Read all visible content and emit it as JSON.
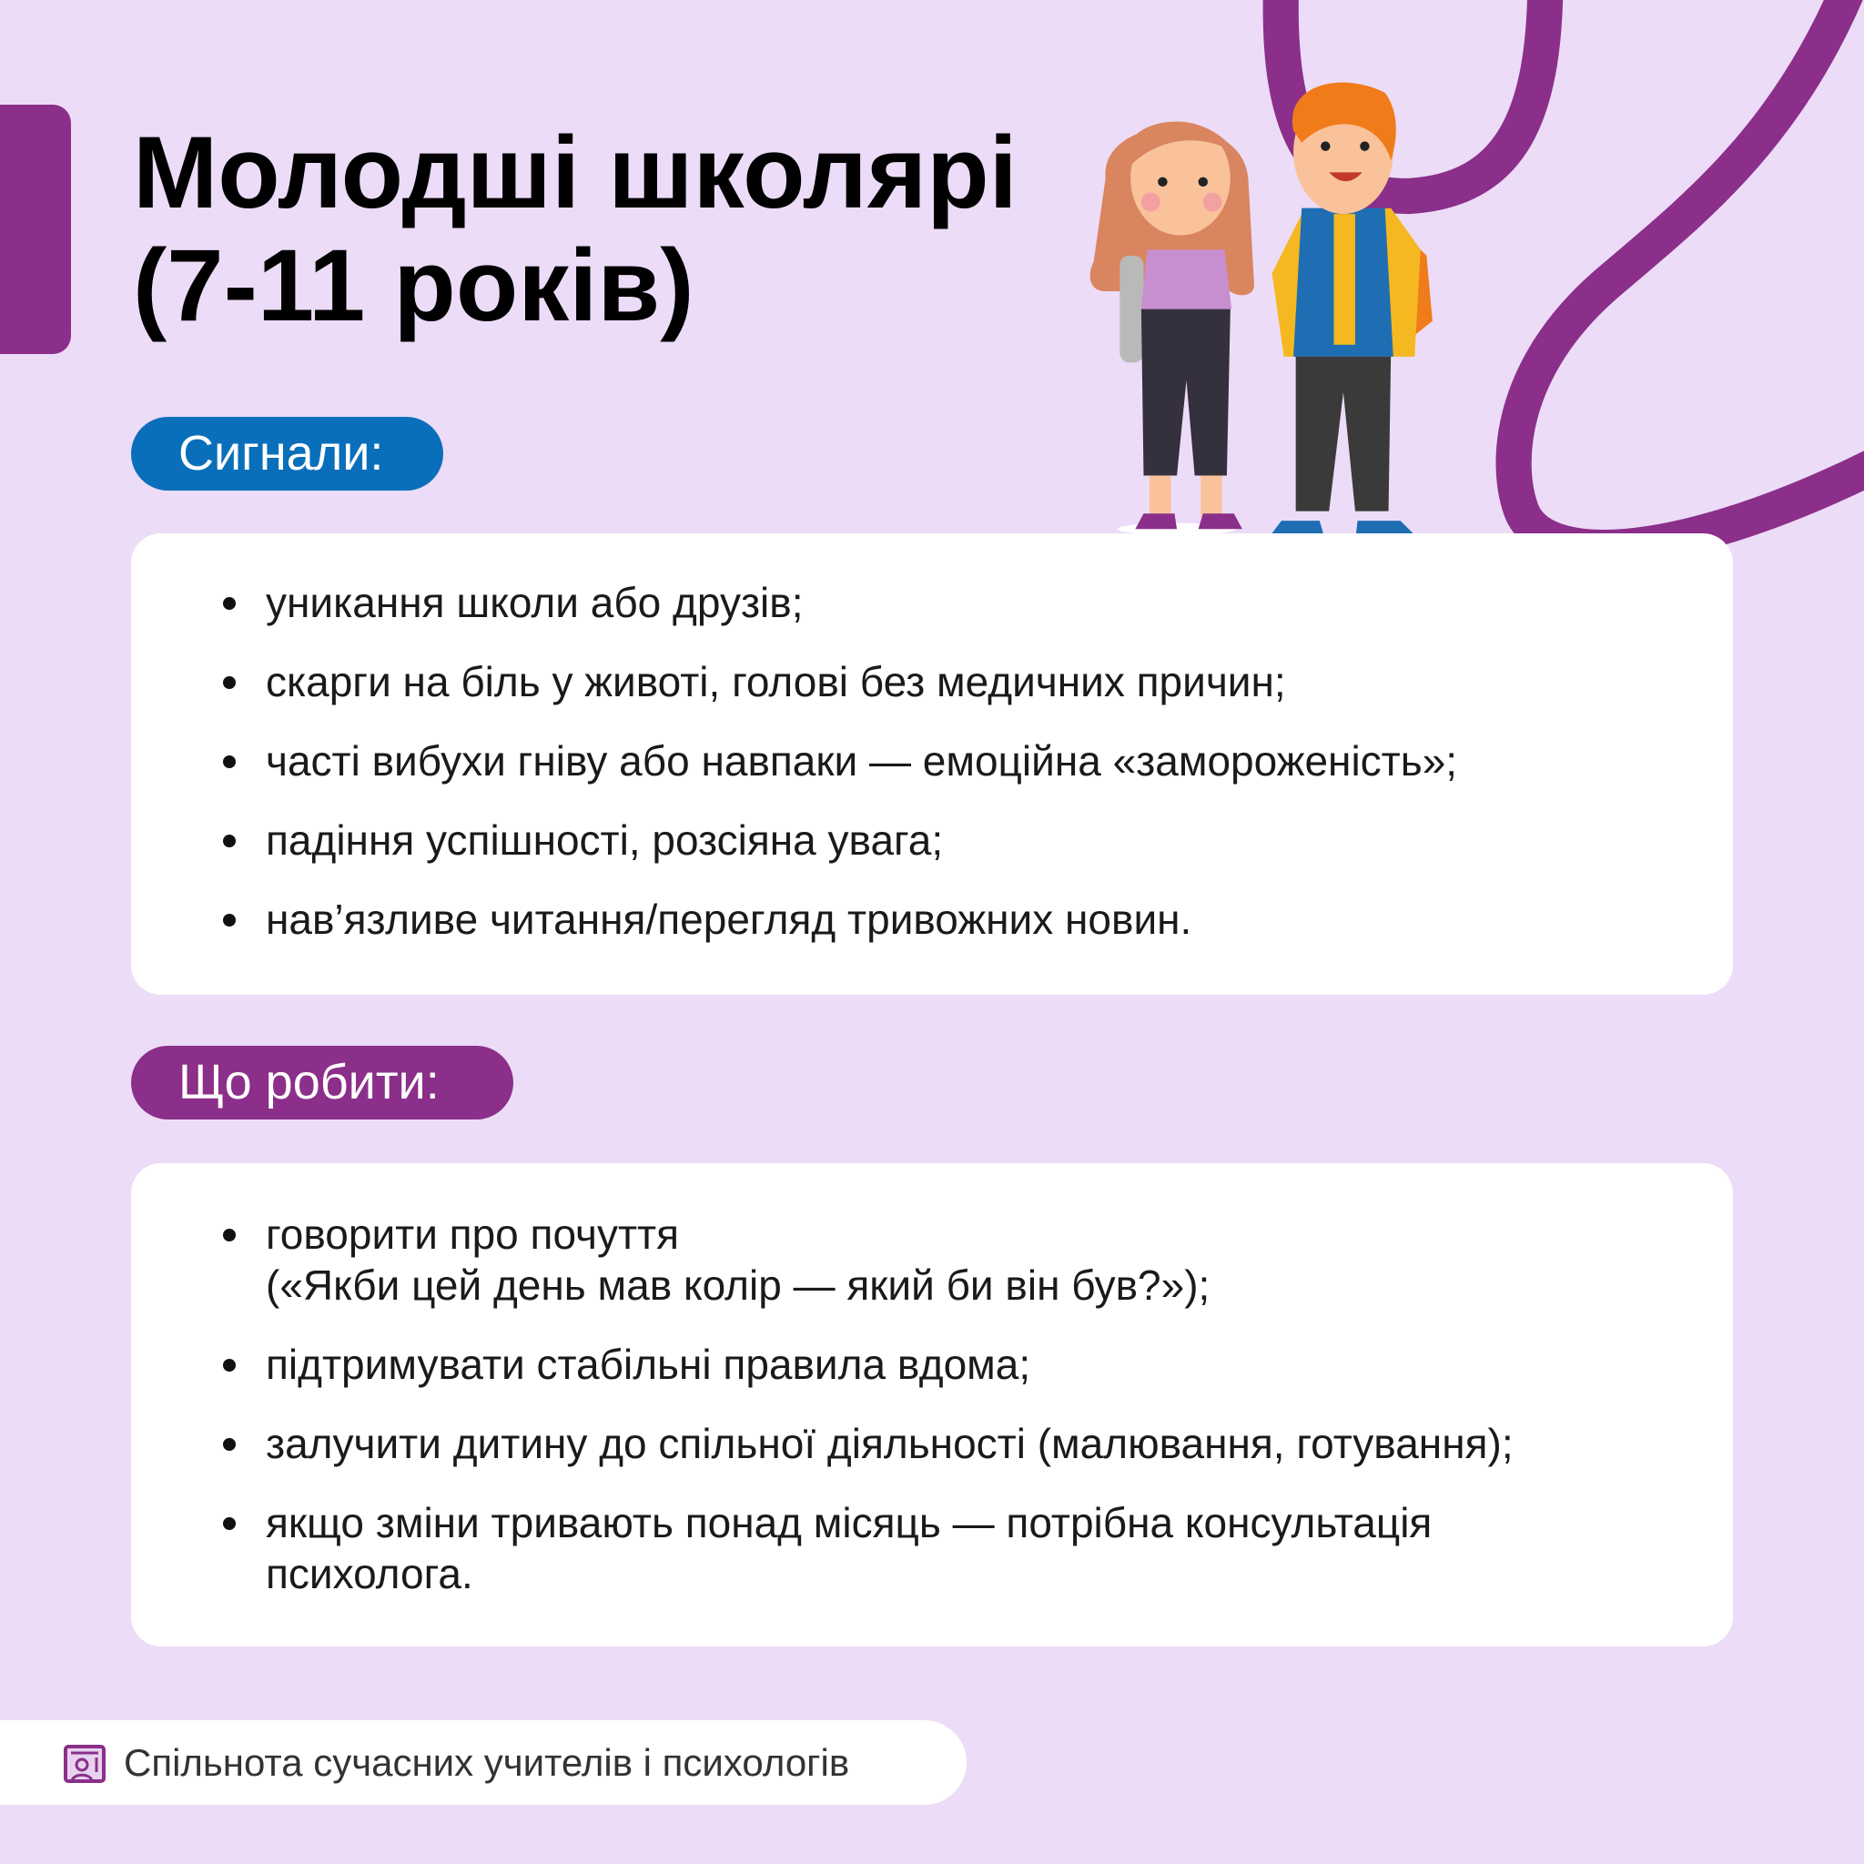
{
  "colors": {
    "background": "#ecdcf7",
    "accent_purple": "#8b2f8a",
    "accent_blue": "#0a6fba"
  },
  "title": {
    "line1": "Молодші школярі",
    "line2": "(7-11 років)"
  },
  "illustration": {
    "icon": "two-schoolchildren-illustration"
  },
  "signals": {
    "label": "Сигнали:",
    "items": [
      "уникання школи або друзів;",
      "скарги на біль у животі, голові без медичних причин;",
      "часті вибухи гніву або навпаки — емоційна «замороженість»;",
      "падіння успішності, розсіяна увага;",
      "нав’язливе читання/перегляд тривожних новин."
    ]
  },
  "actions": {
    "label": "Що робити:",
    "items": [
      {
        "line1": "говорити про почуття",
        "line2": "(«Якби цей день мав колір — який би він був?»);"
      },
      {
        "line1": "підтримувати стабільні правила вдома;"
      },
      {
        "line1": "залучити дитину до спільної діяльності (малювання, готування);"
      },
      {
        "line1": "якщо зміни тривають понад місяць — потрібна консультація",
        "line2": "психолога."
      }
    ]
  },
  "footer": {
    "icon": "teacher-board-icon",
    "text": "Спільнота сучасних учителів і психологів"
  }
}
